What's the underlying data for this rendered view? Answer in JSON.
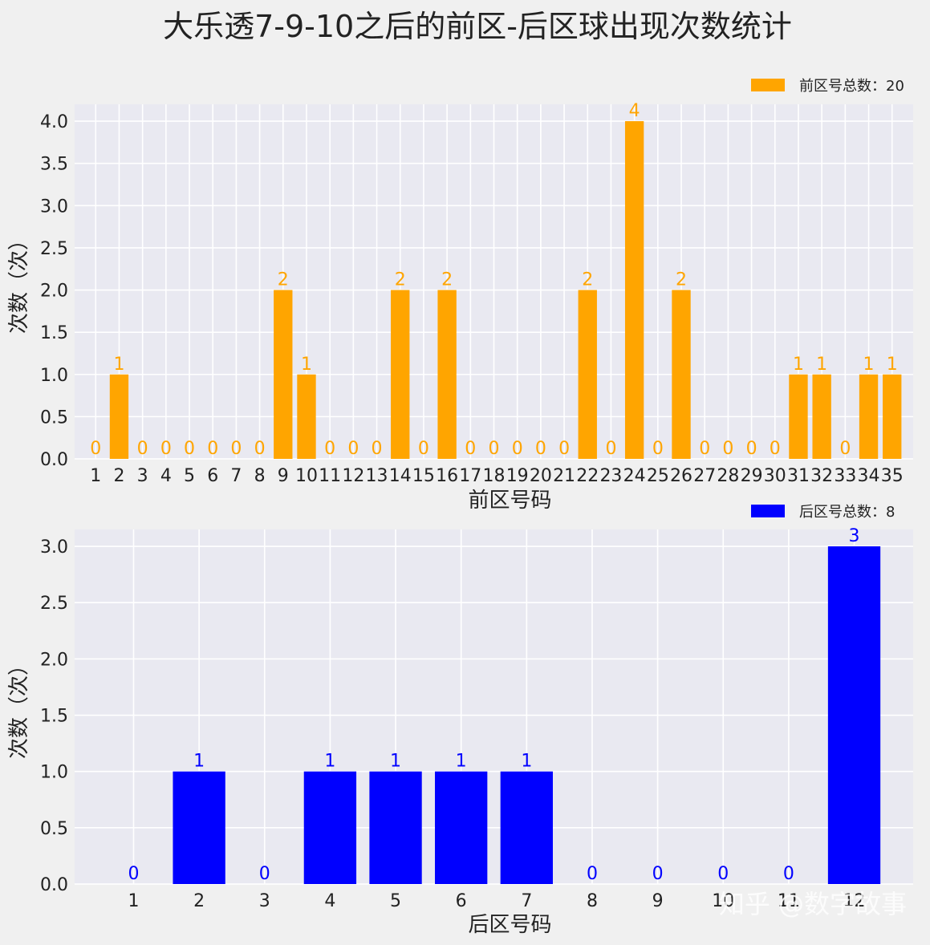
{
  "title": "大乐透7-9-10之后的前区-后区球出现次数统计",
  "watermark": "知乎 @数字故事",
  "chart_data": [
    {
      "type": "bar",
      "categories": [
        "1",
        "2",
        "3",
        "4",
        "5",
        "6",
        "7",
        "8",
        "9",
        "10",
        "11",
        "12",
        "13",
        "14",
        "15",
        "16",
        "17",
        "18",
        "19",
        "20",
        "21",
        "22",
        "23",
        "24",
        "25",
        "26",
        "27",
        "28",
        "29",
        "30",
        "31",
        "32",
        "33",
        "34",
        "35"
      ],
      "values": [
        0,
        1,
        0,
        0,
        0,
        0,
        0,
        0,
        2,
        1,
        0,
        0,
        0,
        2,
        0,
        2,
        0,
        0,
        0,
        0,
        0,
        2,
        0,
        4,
        0,
        2,
        0,
        0,
        0,
        0,
        1,
        1,
        0,
        1,
        1
      ],
      "xlabel": "前区号码",
      "ylabel": "次数（次）",
      "ylim": [
        0,
        4.2
      ],
      "yticks": [
        "0.0",
        "0.5",
        "1.0",
        "1.5",
        "2.0",
        "2.5",
        "3.0",
        "3.5",
        "4.0"
      ],
      "legend": "前区号总数：20",
      "legend_position": "top-right",
      "color": "#ffa500",
      "grid": true
    },
    {
      "type": "bar",
      "categories": [
        "1",
        "2",
        "3",
        "4",
        "5",
        "6",
        "7",
        "8",
        "9",
        "10",
        "11",
        "12"
      ],
      "values": [
        0,
        1,
        0,
        1,
        1,
        1,
        1,
        0,
        0,
        0,
        0,
        3
      ],
      "xlabel": "后区号码",
      "ylabel": "次数（次）",
      "ylim": [
        0,
        3.15
      ],
      "yticks": [
        "0.0",
        "0.5",
        "1.0",
        "1.5",
        "2.0",
        "2.5",
        "3.0"
      ],
      "legend": "后区号总数：8",
      "legend_position": "top-right",
      "color": "#0000ff",
      "grid": true
    }
  ]
}
